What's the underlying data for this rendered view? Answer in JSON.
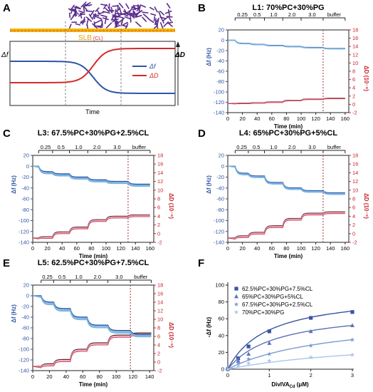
{
  "figure": {
    "panel_letters": [
      "A",
      "B",
      "C",
      "D",
      "E",
      "F"
    ],
    "panel_a": {
      "sublabel_main": "SLB",
      "sublabel_sub": "(CL)",
      "y_left_label": "Δf",
      "y_right_label": "ΔD",
      "x_label": "Time",
      "legend": [
        {
          "label": "Δf",
          "color": "#2f55a4"
        },
        {
          "label": "ΔD",
          "color": "#d42a2a"
        }
      ]
    }
  },
  "colors": {
    "f_main": "#2f55a4",
    "f_light": "#7ab3e0",
    "d_main": "#c8232a",
    "d_light": "#f3a6d8",
    "d_dark": "#5a2a1e",
    "slb": "#f4b400",
    "vesicle": "#5a2d8c",
    "vline": "#a03030"
  },
  "chart_data": [
    {
      "id": "B",
      "type": "line",
      "title": "L1: 70%PC+30%PG",
      "xlabel": "Time (min)",
      "ylabel": "Δf (Hz)",
      "y2label": "ΔD (10⁻⁶)",
      "xlim": [
        0,
        165
      ],
      "ylim": [
        -140,
        20
      ],
      "y2lim": [
        -2,
        18
      ],
      "xticks": [
        0,
        20,
        40,
        60,
        80,
        100,
        120,
        140,
        160
      ],
      "yticks": [
        20,
        0,
        -20,
        -40,
        -60,
        -80,
        -100,
        -120,
        -140
      ],
      "y2ticks": [
        18,
        16,
        14,
        12,
        10,
        8,
        6,
        4,
        2,
        0,
        -2
      ],
      "conc_labels": [
        "0.25",
        "0.5",
        "1.0",
        "2.0",
        "3.0",
        "buffer"
      ],
      "conc_bounds": [
        10,
        30,
        50,
        75,
        100,
        130,
        160
      ],
      "buffer_line": 130,
      "f_segments": [
        [
          0,
          0
        ],
        [
          10,
          -6
        ],
        [
          30,
          -8
        ],
        [
          50,
          -10
        ],
        [
          75,
          -12
        ],
        [
          100,
          -14
        ],
        [
          130,
          -16
        ],
        [
          160,
          -12
        ]
      ],
      "f_spread": 1,
      "d_segments": [
        [
          0,
          0.2
        ],
        [
          10,
          0.3
        ],
        [
          30,
          0.4
        ],
        [
          50,
          0.6
        ],
        [
          75,
          1.0
        ],
        [
          100,
          1.3
        ],
        [
          130,
          1.5
        ],
        [
          160,
          0.6
        ]
      ],
      "d_spread": 0.15
    },
    {
      "id": "C",
      "type": "line",
      "title": "L3: 67.5%PC+30%PG+2.5%CL",
      "xlabel": "Time (min)",
      "ylabel": "Δf (Hz)",
      "y2label": "ΔD (10⁻⁶)",
      "xlim": [
        0,
        165
      ],
      "ylim": [
        -140,
        20
      ],
      "y2lim": [
        -2,
        18
      ],
      "xticks": [
        0,
        20,
        40,
        60,
        80,
        100,
        120,
        140,
        160
      ],
      "yticks": [
        20,
        0,
        -20,
        -40,
        -60,
        -80,
        -100,
        -120,
        -140
      ],
      "y2ticks": [
        18,
        16,
        14,
        12,
        10,
        8,
        6,
        4,
        2,
        0,
        -2
      ],
      "conc_labels": [
        "0.25",
        "0.5",
        "1.0",
        "2.0",
        "3.0",
        "buffer"
      ],
      "conc_bounds": [
        8,
        27,
        50,
        75,
        100,
        130,
        160
      ],
      "buffer_line": 130,
      "f_segments": [
        [
          0,
          0
        ],
        [
          8,
          -10
        ],
        [
          27,
          -14
        ],
        [
          50,
          -20
        ],
        [
          75,
          -25
        ],
        [
          100,
          -28
        ],
        [
          130,
          -33
        ],
        [
          160,
          -22
        ]
      ],
      "f_spread": 4,
      "d_segments": [
        [
          0,
          -1.0
        ],
        [
          8,
          -0.7
        ],
        [
          27,
          0.4
        ],
        [
          50,
          1.5
        ],
        [
          75,
          3.2
        ],
        [
          100,
          4.0
        ],
        [
          130,
          4.3
        ],
        [
          160,
          2.2
        ]
      ],
      "d_spread": 0.4
    },
    {
      "id": "D",
      "type": "line",
      "title": "L4: 65%PC+30%PG+5%CL",
      "xlabel": "Time (min)",
      "ylabel": "Δf (Hz)",
      "y2label": "ΔD (10⁻⁶)",
      "xlim": [
        0,
        165
      ],
      "ylim": [
        -140,
        20
      ],
      "y2lim": [
        -2,
        18
      ],
      "xticks": [
        0,
        20,
        40,
        60,
        80,
        100,
        120,
        140,
        160
      ],
      "yticks": [
        20,
        0,
        -20,
        -40,
        -60,
        -80,
        -100,
        -120,
        -140
      ],
      "y2ticks": [
        18,
        16,
        14,
        12,
        10,
        8,
        6,
        4,
        2,
        0,
        -2
      ],
      "conc_labels": [
        "0.25",
        "0.5",
        "1.0",
        "2.0",
        "3.0",
        "buffer"
      ],
      "conc_bounds": [
        10,
        28,
        50,
        75,
        100,
        130,
        160
      ],
      "buffer_line": 130,
      "f_segments": [
        [
          0,
          0
        ],
        [
          10,
          -13
        ],
        [
          28,
          -18
        ],
        [
          50,
          -30
        ],
        [
          75,
          -40
        ],
        [
          100,
          -45
        ],
        [
          130,
          -49
        ],
        [
          160,
          -33
        ]
      ],
      "f_spread": 3,
      "d_segments": [
        [
          0,
          -1.0
        ],
        [
          10,
          -0.5
        ],
        [
          28,
          0.3
        ],
        [
          50,
          1.8
        ],
        [
          75,
          3.5
        ],
        [
          100,
          4.7
        ],
        [
          130,
          5.0
        ],
        [
          160,
          3.3
        ]
      ],
      "d_spread": 0.4
    },
    {
      "id": "E",
      "type": "line",
      "title": "L5: 62.5%PC+30%PG+7.5%CL",
      "xlabel": "Time (min)",
      "ylabel": "Δf (Hz)",
      "y2label": "ΔD (10⁻⁶)",
      "xlim": [
        0,
        145
      ],
      "ylim": [
        -140,
        20
      ],
      "y2lim": [
        -2,
        18
      ],
      "xticks": [
        0,
        20,
        40,
        60,
        80,
        100,
        120,
        140
      ],
      "yticks": [
        20,
        0,
        -20,
        -40,
        -60,
        -80,
        -100,
        -120,
        -140
      ],
      "y2ticks": [
        18,
        16,
        14,
        12,
        10,
        8,
        6,
        4,
        2,
        0,
        -2
      ],
      "conc_labels": [
        "0.25",
        "0.5",
        "1.0",
        "2.0",
        "3.0",
        "buffer"
      ],
      "conc_bounds": [
        10,
        25,
        45,
        65,
        90,
        117,
        142
      ],
      "buffer_line": 117,
      "f_segments": [
        [
          0,
          0
        ],
        [
          10,
          -12
        ],
        [
          25,
          -24
        ],
        [
          45,
          -40
        ],
        [
          65,
          -55
        ],
        [
          90,
          -65
        ],
        [
          117,
          -72
        ],
        [
          142,
          -55
        ]
      ],
      "f_spread": 5,
      "d_segments": [
        [
          0,
          -1.0
        ],
        [
          10,
          -0.4
        ],
        [
          25,
          0.6
        ],
        [
          45,
          3.0
        ],
        [
          65,
          4.5
        ],
        [
          90,
          6.3
        ],
        [
          117,
          6.8
        ],
        [
          142,
          5.7
        ]
      ],
      "d_spread": 0.5
    },
    {
      "id": "F",
      "type": "scatter",
      "xlabel": "DivIVA",
      "xlabel_sub": "Cd",
      "xlabel_unit": " (μM)",
      "ylabel": "-Δf (Hz)",
      "xlim": [
        0,
        3
      ],
      "ylim": [
        0,
        100
      ],
      "xticks": [
        0,
        1,
        2,
        3
      ],
      "yticks": [
        0,
        20,
        40,
        60,
        80,
        100
      ],
      "x": [
        0,
        0.25,
        0.5,
        1.0,
        2.0,
        3.0
      ],
      "series": [
        {
          "name": "62.5%PC+30%PG+7.5%CL",
          "values": [
            0,
            13,
            27,
            45,
            61,
            68
          ],
          "color": "#3b53a4",
          "marker": "square",
          "fit": {
            "bmax": 91,
            "kd": 0.95
          }
        },
        {
          "name": "65%PC+30%PG+5%CL",
          "values": [
            0,
            10,
            18,
            31,
            45,
            52
          ],
          "color": "#5a72b8",
          "marker": "triangle",
          "fit": {
            "bmax": 72,
            "kd": 1.15
          }
        },
        {
          "name": "67.5%PC+30%PG+2.5%CL",
          "values": [
            0,
            7,
            12,
            18,
            28,
            35
          ],
          "color": "#7a9ad2",
          "marker": "star",
          "fit": {
            "bmax": 65,
            "kd": 2.55
          }
        },
        {
          "name": "70%PC+30%PG",
          "values": [
            0,
            4,
            7,
            10,
            14,
            17
          ],
          "color": "#a9c6ec",
          "marker": "star",
          "fit": {
            "bmax": 40,
            "kd": 4.0
          }
        }
      ]
    }
  ]
}
